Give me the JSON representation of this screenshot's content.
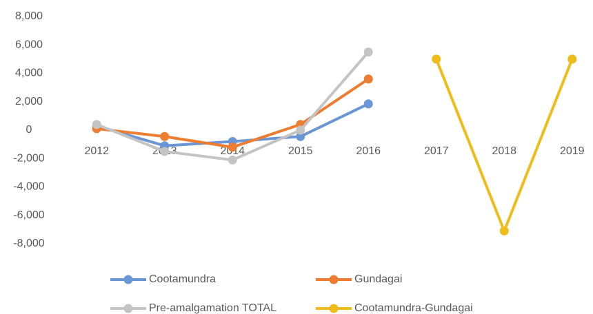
{
  "chart_data": {
    "type": "line",
    "categories": [
      "2012",
      "2013",
      "2014",
      "2015",
      "2016",
      "2017",
      "2018",
      "2019"
    ],
    "series": [
      {
        "name": "Cootamundra",
        "color": "#6b96d6",
        "values": [
          300,
          -1100,
          -800,
          -450,
          1850,
          null,
          null,
          null
        ]
      },
      {
        "name": "Gundagai",
        "color": "#ed7d31",
        "values": [
          100,
          -450,
          -1200,
          400,
          3600,
          null,
          null,
          null
        ]
      },
      {
        "name": "Pre-amalgamation TOTAL",
        "color": "#c4c4c4",
        "values": [
          400,
          -1500,
          -2100,
          0,
          5500,
          null,
          null,
          null
        ]
      },
      {
        "name": "Cootamundra-Gundagai",
        "color": "#eebd1c",
        "values": [
          null,
          null,
          null,
          null,
          null,
          5000,
          -7100,
          5000
        ]
      }
    ],
    "ylim": [
      -8000,
      8000
    ],
    "yticks": [
      {
        "value": -8000,
        "label": "-8,000"
      },
      {
        "value": -6000,
        "label": "-6,000"
      },
      {
        "value": -4000,
        "label": "-4,000"
      },
      {
        "value": -2000,
        "label": "-2,000"
      },
      0,
      {
        "value": 2000,
        "label": "2,000"
      },
      {
        "value": 4000,
        "label": "4,000"
      },
      {
        "value": 6000,
        "label": "6,000"
      },
      {
        "value": 8000,
        "label": "8,000"
      }
    ],
    "grid": false
  }
}
